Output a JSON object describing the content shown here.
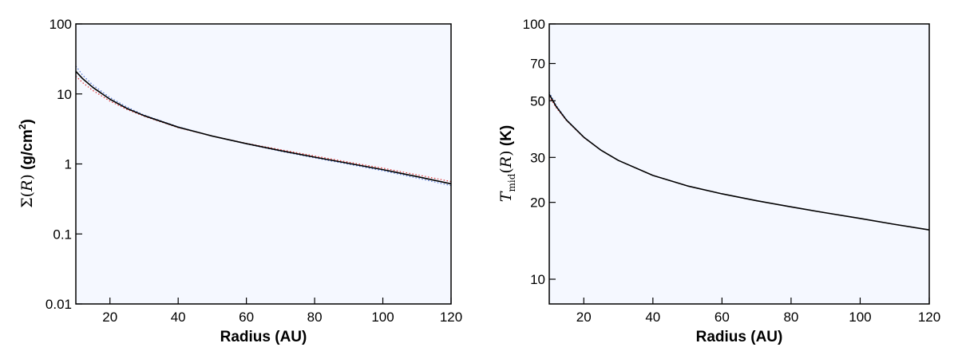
{
  "chart_data": [
    {
      "type": "line",
      "xlabel": "Radius (AU)",
      "ylabel": {
        "symbol": "Σ",
        "open": "(",
        "var": "R",
        "close": ")",
        "unit": " (g/cm",
        "unit_sup": "2",
        "unit_end": ")"
      },
      "xlim": [
        10,
        120
      ],
      "ylim": [
        0.01,
        100
      ],
      "yscale": "log",
      "xticks": [
        20,
        40,
        60,
        80,
        100,
        120
      ],
      "xtick_labels": [
        "20",
        "40",
        "60",
        "80",
        "100",
        "120"
      ],
      "yticks": [
        0.01,
        0.1,
        1,
        10,
        100
      ],
      "ytick_labels": [
        "0.01",
        "0.1",
        "1",
        "10",
        "100"
      ],
      "background": "#f5f8ff",
      "series": [
        {
          "style": "solid",
          "color": "#000000",
          "x": [
            10,
            12,
            15,
            20,
            25,
            30,
            40,
            50,
            60,
            70,
            80,
            90,
            100,
            110,
            120
          ],
          "y": [
            21,
            16.5,
            12.4,
            8.4,
            6.2,
            4.9,
            3.35,
            2.5,
            1.95,
            1.55,
            1.25,
            1.02,
            0.83,
            0.66,
            0.52
          ]
        },
        {
          "style": "dotted",
          "color": "#e03030",
          "x": [
            10,
            12,
            15,
            20,
            25,
            30,
            40,
            50,
            60,
            70,
            80,
            90,
            100,
            110,
            120
          ],
          "y": [
            18,
            14.5,
            11.2,
            7.9,
            6.0,
            4.8,
            3.3,
            2.5,
            1.97,
            1.6,
            1.3,
            1.06,
            0.87,
            0.7,
            0.56
          ]
        },
        {
          "style": "dotted",
          "color": "#4a6fd0",
          "x": [
            10,
            12,
            15,
            20,
            25,
            30,
            40,
            50,
            60,
            70,
            80,
            90,
            100,
            110,
            120
          ],
          "y": [
            25,
            18.5,
            13.4,
            8.9,
            6.5,
            5.0,
            3.4,
            2.5,
            1.93,
            1.52,
            1.22,
            0.99,
            0.8,
            0.63,
            0.49
          ]
        }
      ]
    },
    {
      "type": "line",
      "xlabel": "Radius (AU)",
      "ylabel": {
        "symbol": "T",
        "sub": "mid",
        "open": "(",
        "var": "R",
        "close": ")",
        "unit": " (K)"
      },
      "xlim": [
        10,
        120
      ],
      "ylim": [
        8,
        100
      ],
      "yscale": "log",
      "xticks": [
        20,
        40,
        60,
        80,
        100,
        120
      ],
      "xtick_labels": [
        "20",
        "40",
        "60",
        "80",
        "100",
        "120"
      ],
      "yticks": [
        10,
        20,
        30,
        50,
        70,
        100
      ],
      "ytick_labels": [
        "10",
        "20",
        "30",
        "50",
        "70",
        "100"
      ],
      "background": "#f5f8ff",
      "series": [
        {
          "style": "solid",
          "color": "#000000",
          "x": [
            10,
            12,
            15,
            20,
            25,
            30,
            40,
            50,
            60,
            70,
            80,
            90,
            100,
            110,
            120
          ],
          "y": [
            53,
            47.5,
            42,
            36,
            32,
            29.2,
            25.5,
            23.2,
            21.6,
            20.3,
            19.2,
            18.2,
            17.3,
            16.4,
            15.6
          ]
        },
        {
          "style": "dotted",
          "color": "#e03030",
          "x": [
            10,
            12,
            15,
            20,
            25,
            30,
            40,
            50,
            60,
            70,
            80,
            90,
            100,
            110,
            120
          ],
          "y": [
            52,
            47,
            41.8,
            35.9,
            32,
            29.2,
            25.5,
            23.2,
            21.6,
            20.3,
            19.2,
            18.2,
            17.3,
            16.4,
            15.6
          ]
        },
        {
          "style": "dotted",
          "color": "#4a6fd0",
          "x": [
            10,
            12,
            15,
            20,
            25,
            30,
            40,
            50,
            60,
            70,
            80,
            90,
            100,
            110,
            120
          ],
          "y": [
            54,
            48,
            42.2,
            36.1,
            32,
            29.2,
            25.5,
            23.2,
            21.6,
            20.3,
            19.2,
            18.2,
            17.3,
            16.4,
            15.6
          ]
        }
      ]
    }
  ]
}
